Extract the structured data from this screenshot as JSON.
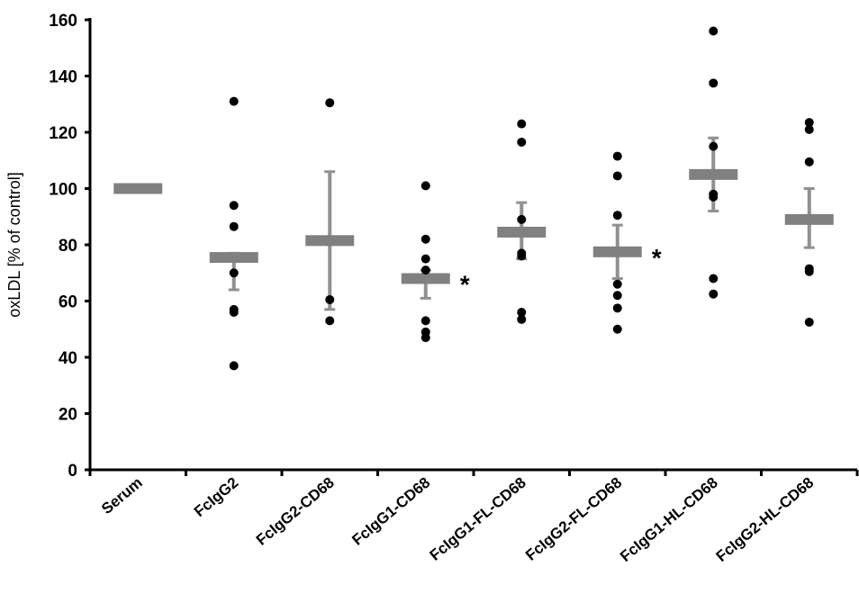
{
  "chart_data": {
    "type": "scatter",
    "title": "",
    "xlabel": "",
    "ylabel": "oxLDL [% of control]",
    "ylim": [
      0,
      160
    ],
    "yticks": [
      0,
      20,
      40,
      60,
      80,
      100,
      120,
      140,
      160
    ],
    "grid": false,
    "legend": "none",
    "colors": {
      "points": "#000000",
      "mean": "#808080",
      "error": "#909090",
      "axis": "#000000"
    },
    "categories": [
      "Serum",
      "FcIgG2",
      "FcIgG2-CD68",
      "FcIgG1-CD68",
      "FcIgG1-FL-CD68",
      "FcIgG2-FL-CD68",
      "FcIgG1-HL-CD68",
      "FcIgG2-HL-CD68"
    ],
    "groups": [
      {
        "category": "Serum",
        "points": [],
        "mean": 100,
        "error": null,
        "significant": false
      },
      {
        "category": "FcIgG2",
        "points": [
          131,
          94,
          86.5,
          70,
          57,
          56,
          37
        ],
        "mean": 75.5,
        "error": [
          64,
          77
        ],
        "significant": false
      },
      {
        "category": "FcIgG2-CD68",
        "points": [
          130.5,
          60.5,
          53
        ],
        "mean": 81.5,
        "error": [
          57,
          106
        ],
        "significant": false
      },
      {
        "category": "FcIgG1-CD68",
        "points": [
          101,
          82,
          75,
          71,
          53,
          49,
          47
        ],
        "mean": 68,
        "error": [
          61,
          71
        ],
        "significant": true
      },
      {
        "category": "FcIgG1-FL-CD68",
        "points": [
          123,
          116.5,
          89,
          77,
          76,
          56,
          53.5
        ],
        "mean": 84.5,
        "error": [
          75,
          95
        ],
        "significant": false
      },
      {
        "category": "FcIgG2-FL-CD68",
        "points": [
          111.5,
          104.5,
          90.5,
          66,
          62,
          57.5,
          50
        ],
        "mean": 77.5,
        "error": [
          68,
          87
        ],
        "significant": true
      },
      {
        "category": "FcIgG1-HL-CD68",
        "points": [
          156,
          137.5,
          115,
          98,
          97,
          68,
          62.5
        ],
        "mean": 105,
        "error": [
          92,
          118
        ],
        "significant": false
      },
      {
        "category": "FcIgG2-HL-CD68",
        "points": [
          123.5,
          121,
          109.5,
          71.5,
          70.5,
          52.5
        ],
        "mean": 89,
        "error": [
          79,
          100
        ],
        "significant": false
      }
    ],
    "significance_marker": "*"
  }
}
